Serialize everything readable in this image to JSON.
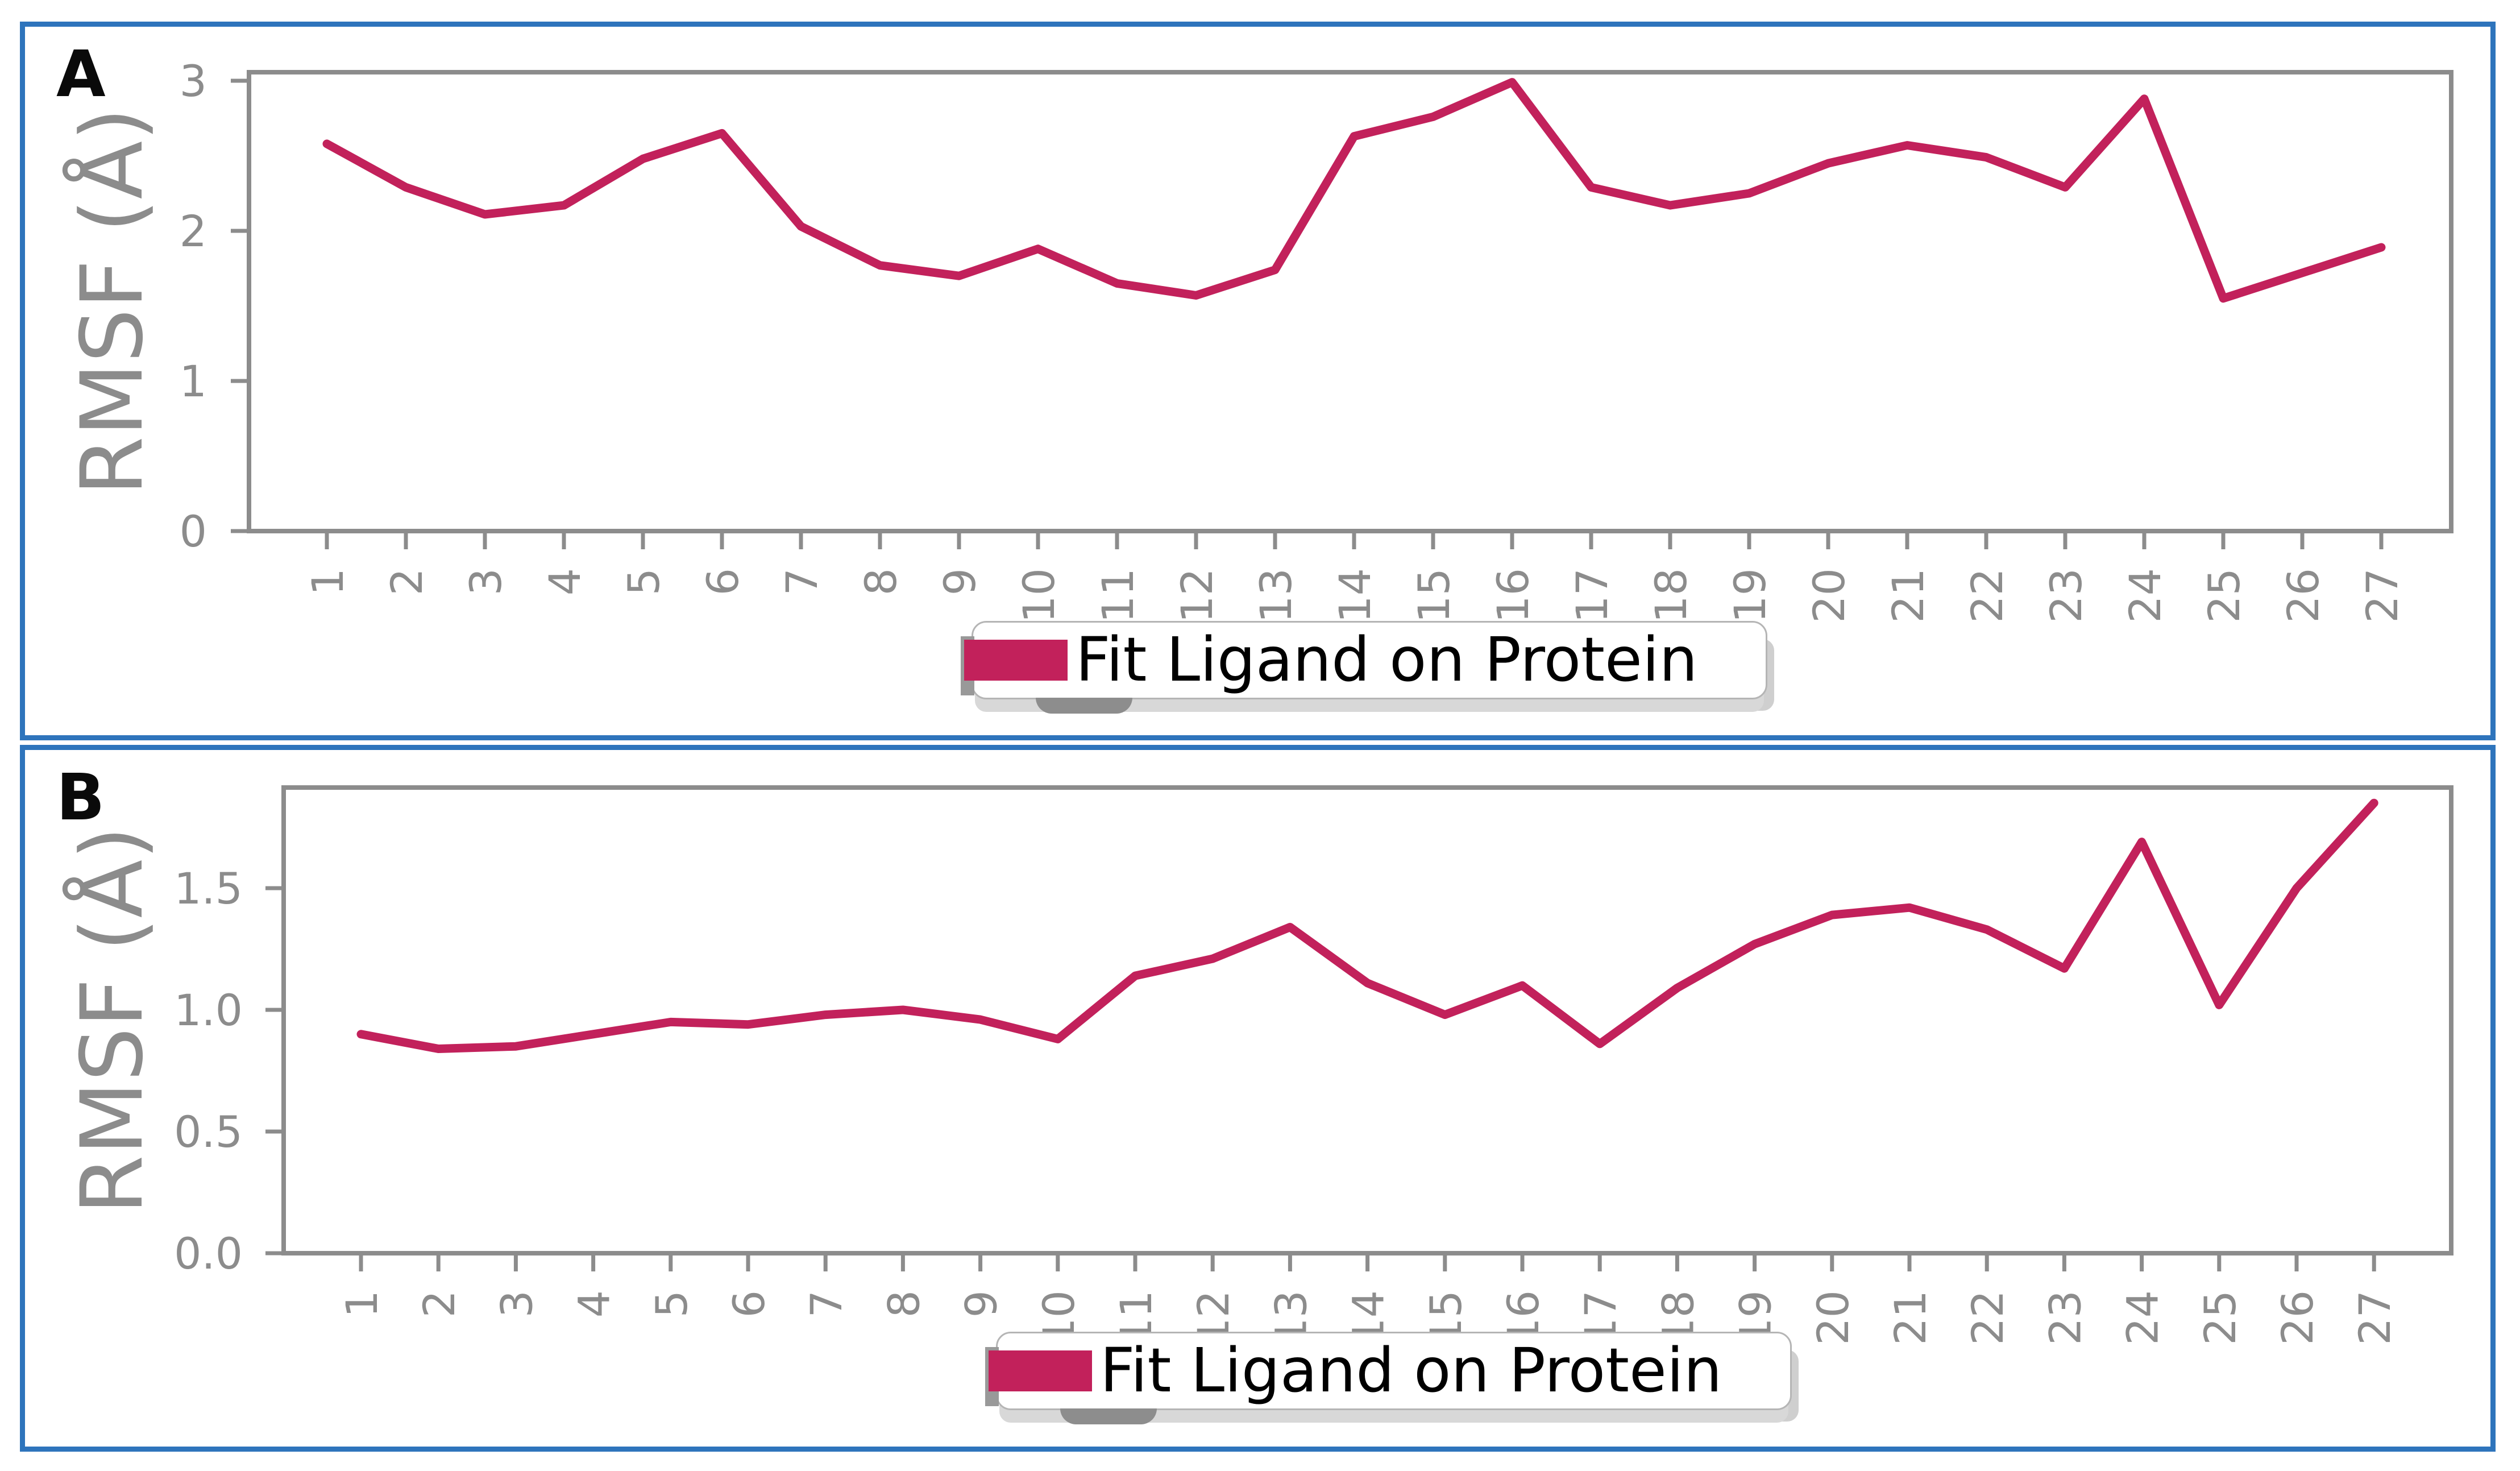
{
  "figure_type": "two-panel RMSF line figure",
  "colors": {
    "line": "#C2215B",
    "axis_gray": "#8C8C8C",
    "panel_border_blue": "#2E74BC",
    "legend_border": "#B5B5B5",
    "legend_text": "#000000",
    "background": "#FFFFFF"
  },
  "chart_data": [
    {
      "type": "line",
      "panel_label": "A",
      "ylabel": "RMSF (Å)",
      "xlabel": "",
      "x": [
        "1",
        "2",
        "3",
        "4",
        "5",
        "6",
        "7",
        "8",
        "9",
        "10",
        "11",
        "12",
        "13",
        "14",
        "15",
        "16",
        "17",
        "18",
        "19",
        "20",
        "21",
        "22",
        "23",
        "24",
        "25",
        "26",
        "27"
      ],
      "series": [
        {
          "name": "Fit Ligand on Protein",
          "color": "#C2215B",
          "values": [
            2.58,
            2.29,
            2.11,
            2.17,
            2.48,
            2.65,
            2.03,
            1.77,
            1.7,
            1.88,
            1.65,
            1.57,
            1.74,
            2.63,
            2.76,
            2.99,
            2.29,
            2.17,
            2.25,
            2.45,
            2.57,
            2.49,
            2.29,
            2.88,
            1.55,
            1.72,
            1.89
          ]
        }
      ],
      "yticks": [
        "0",
        "1",
        "2",
        "3"
      ],
      "ylim": [
        0,
        3.06
      ],
      "grid": false,
      "legend_position": "below x-axis, centered"
    },
    {
      "type": "line",
      "panel_label": "B",
      "ylabel": "RMSF (Å)",
      "xlabel": "",
      "x": [
        "1",
        "2",
        "3",
        "4",
        "5",
        "6",
        "7",
        "8",
        "9",
        "10",
        "11",
        "12",
        "13",
        "14",
        "15",
        "16",
        "17",
        "18",
        "19",
        "20",
        "21",
        "22",
        "23",
        "24",
        "25",
        "26",
        "27"
      ],
      "series": [
        {
          "name": "Fit Ligand on Protein",
          "color": "#C2215B",
          "values": [
            0.9,
            0.84,
            0.85,
            0.9,
            0.95,
            0.94,
            0.98,
            1.0,
            0.96,
            0.88,
            1.14,
            1.21,
            1.34,
            1.11,
            0.98,
            1.1,
            0.86,
            1.09,
            1.27,
            1.39,
            1.42,
            1.33,
            1.17,
            1.69,
            1.02,
            1.5,
            1.85
          ]
        }
      ],
      "yticks": [
        "0.0",
        "0.5",
        "1.0",
        "1.5"
      ],
      "ylim": [
        0,
        1.91
      ],
      "grid": false,
      "legend_position": "below x-axis, centered"
    }
  ]
}
